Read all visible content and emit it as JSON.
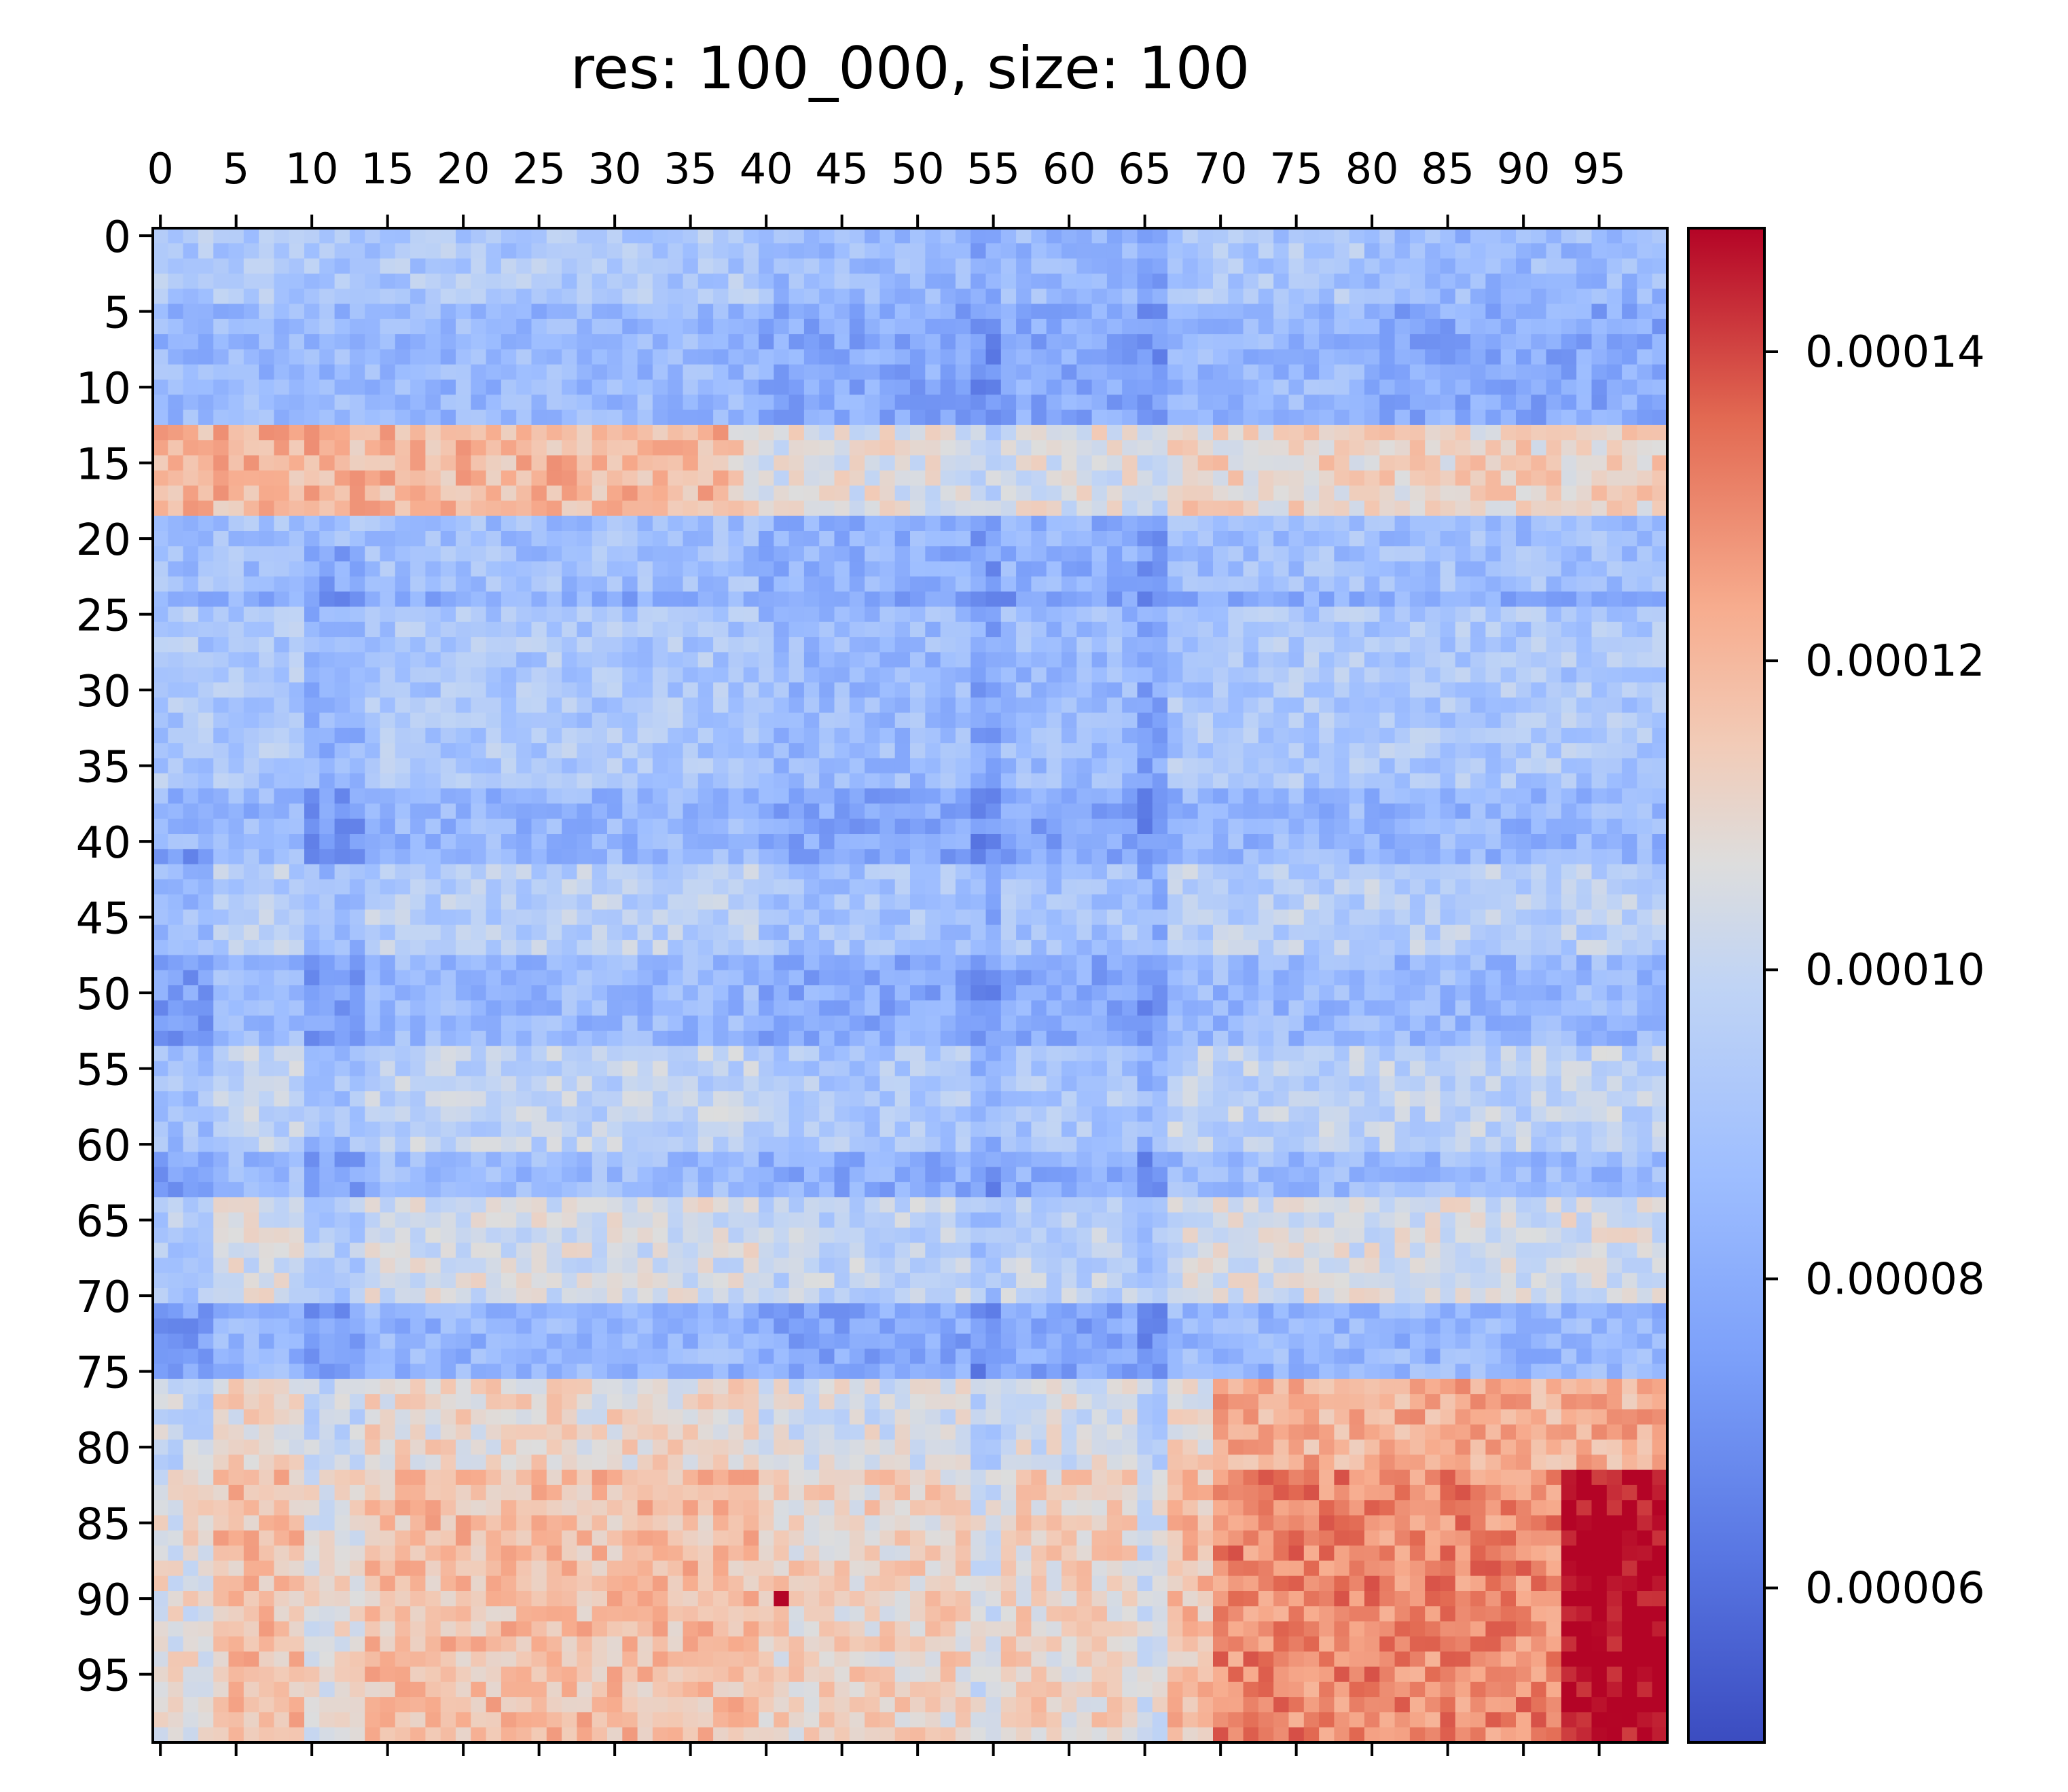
{
  "chart_data": {
    "type": "heatmap",
    "title": "res: 100_000, size: 100",
    "xlabel": "",
    "ylabel": "",
    "x_tick_labels": [
      "0",
      "5",
      "10",
      "15",
      "20",
      "25",
      "30",
      "35",
      "40",
      "45",
      "50",
      "55",
      "60",
      "65",
      "70",
      "75",
      "80",
      "85",
      "90",
      "95"
    ],
    "y_tick_labels": [
      "0",
      "5",
      "10",
      "15",
      "20",
      "25",
      "30",
      "35",
      "40",
      "45",
      "50",
      "55",
      "60",
      "65",
      "70",
      "75",
      "80",
      "85",
      "90",
      "95"
    ],
    "grid": false,
    "colormap": "coolwarm",
    "color_low": "#3b4cc0",
    "color_mid": "#dddddd",
    "color_high": "#b40426",
    "colorbar": {
      "position": "right",
      "vmin": 5e-05,
      "vmax": 0.000148,
      "ticks": [
        6e-05,
        8e-05,
        0.0001,
        0.00012,
        0.00014
      ],
      "tick_labels": [
        "0.00006",
        "0.00008",
        "0.00010",
        "0.00012",
        "0.00014"
      ]
    },
    "matrix_size": 100,
    "value_model": {
      "description_note": "",
      "row_bias_segments": [
        {
          "rows": [
            0,
            4
          ],
          "level": 9.2e-05
        },
        {
          "rows": [
            5,
            12
          ],
          "level": 8.5e-05
        },
        {
          "rows": [
            13,
            18
          ],
          "level": 0.000112
        },
        {
          "rows": [
            19,
            23
          ],
          "level": 8.8e-05
        },
        {
          "rows": [
            24,
            24
          ],
          "level": 8e-05
        },
        {
          "rows": [
            25,
            36
          ],
          "level": 9.2e-05
        },
        {
          "rows": [
            37,
            41
          ],
          "level": 8.4e-05
        },
        {
          "rows": [
            42,
            47
          ],
          "level": 9.6e-05
        },
        {
          "rows": [
            48,
            53
          ],
          "level": 8.5e-05
        },
        {
          "rows": [
            54,
            60
          ],
          "level": 9.8e-05
        },
        {
          "rows": [
            61,
            63
          ],
          "level": 8.6e-05
        },
        {
          "rows": [
            64,
            70
          ],
          "level": 0.000104
        },
        {
          "rows": [
            71,
            75
          ],
          "level": 8.4e-05
        },
        {
          "rows": [
            76,
            81
          ],
          "level": 0.00011
        },
        {
          "rows": [
            82,
            99
          ],
          "level": 0.000118
        }
      ]
    }
  }
}
